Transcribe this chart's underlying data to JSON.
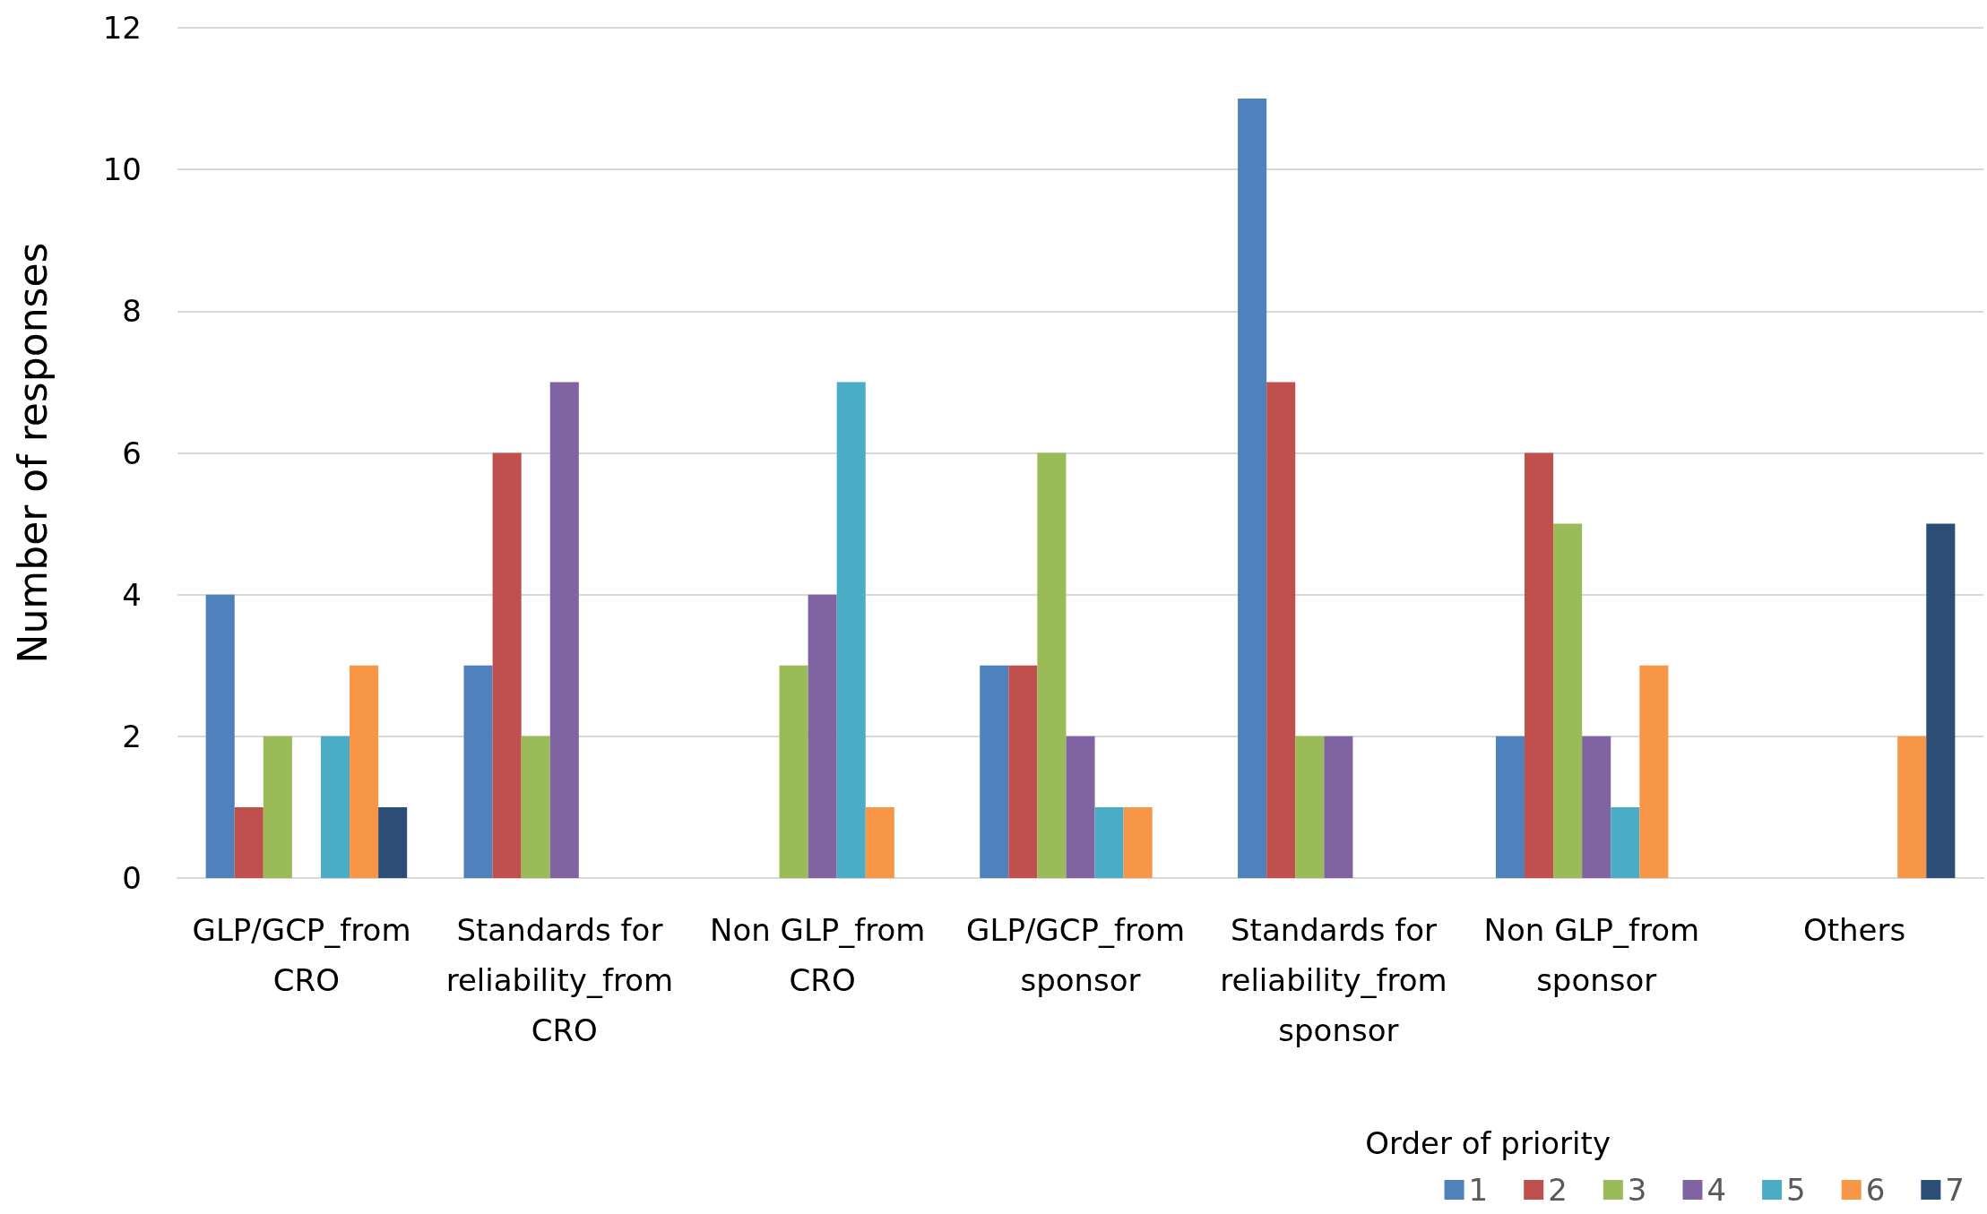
{
  "chart_data": {
    "type": "bar",
    "ylabel": "Number of responses",
    "legend_title": "Order of priority",
    "categories": [
      "GLP/GCP_from CRO",
      "Standards for reliability_from CRO",
      "Non GLP_from CRO",
      "GLP/GCP_from sponsor",
      "Standards for reliability_from sponsor",
      "Non GLP_from sponsor",
      "Others"
    ],
    "series": [
      {
        "name": "1",
        "color": "#4f81bd",
        "values": [
          4,
          3,
          0,
          3,
          11,
          2,
          0
        ]
      },
      {
        "name": "2",
        "color": "#c0504d",
        "values": [
          1,
          6,
          0,
          3,
          7,
          6,
          0
        ]
      },
      {
        "name": "3",
        "color": "#9bbb59",
        "values": [
          2,
          2,
          3,
          6,
          2,
          5,
          0
        ]
      },
      {
        "name": "4",
        "color": "#8064a2",
        "values": [
          0,
          7,
          4,
          2,
          2,
          2,
          0
        ]
      },
      {
        "name": "5",
        "color": "#4bacc6",
        "values": [
          2,
          0,
          7,
          1,
          0,
          1,
          0
        ]
      },
      {
        "name": "6",
        "color": "#f79646",
        "values": [
          3,
          0,
          1,
          1,
          0,
          3,
          2
        ]
      },
      {
        "name": "7",
        "color": "#2c4d75",
        "values": [
          1,
          0,
          0,
          0,
          0,
          0,
          5
        ]
      }
    ],
    "ylim": [
      0,
      12
    ],
    "yticks": [
      0,
      2,
      4,
      6,
      8,
      10,
      12
    ],
    "grid": "y",
    "legend": "bottom right"
  }
}
